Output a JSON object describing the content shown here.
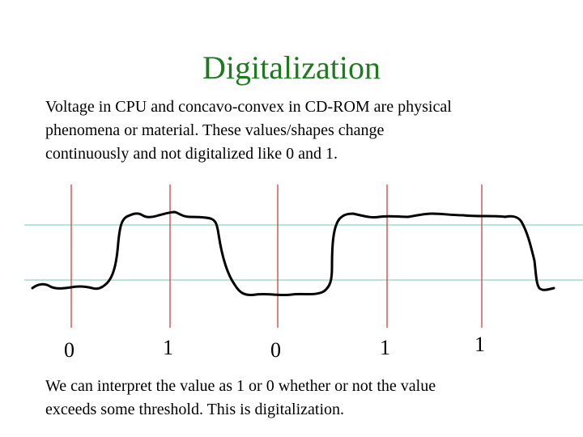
{
  "title": "Digitalization",
  "intro": [
    "Voltage in CPU and concavo-convex in CD-ROM are physical",
    "phenomena or material. These values/shapes change",
    "continuously and not digitalized like 0 and 1."
  ],
  "digits": [
    "0",
    "1",
    "0",
    "1",
    "1"
  ],
  "conclusion": [
    "We can interpret the value as 1 or 0 whether or not the value",
    "exceeds some threshold. This is digitalization."
  ],
  "colors": {
    "title": "#1f7a1f",
    "threshold_line": "#8fd3c3",
    "sample_line": "#d03030",
    "signal": "#000000"
  }
}
